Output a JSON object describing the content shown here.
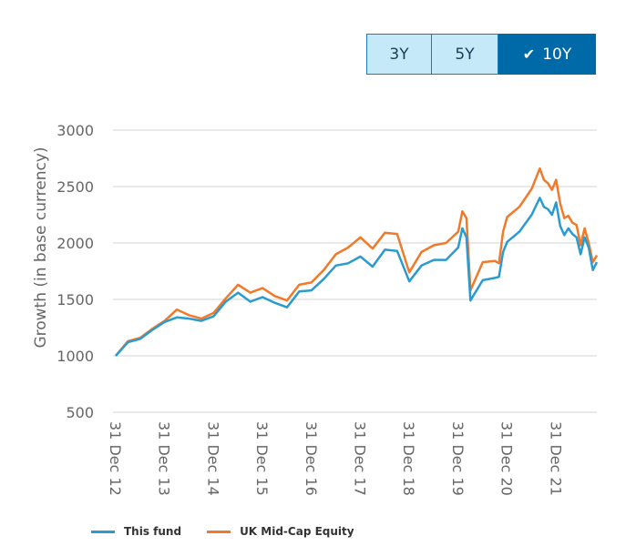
{
  "range_buttons": [
    {
      "label": "3Y",
      "active": false
    },
    {
      "label": "5Y",
      "active": false
    },
    {
      "label": "10Y",
      "active": true,
      "icon": "check-icon"
    }
  ],
  "chart_data": {
    "type": "line",
    "ylabel": "Growth (in base currency)",
    "xlabel": "",
    "ylim": [
      500,
      3000
    ],
    "yticks": [
      500,
      1000,
      1500,
      2000,
      2500,
      3000
    ],
    "xtick_labels": [
      "31 Dec 12",
      "31 Dec 13",
      "31 Dec 14",
      "31 Dec 15",
      "31 Dec 16",
      "31 Dec 17",
      "31 Dec 18",
      "31 Dec 19",
      "31 Dec 20",
      "31 Dec 21"
    ],
    "grid": "horizontal",
    "legend": "bottom",
    "x": [
      "2012-12",
      "2013-03",
      "2013-06",
      "2013-09",
      "2013-12",
      "2014-03",
      "2014-06",
      "2014-09",
      "2014-12",
      "2015-03",
      "2015-06",
      "2015-09",
      "2015-12",
      "2016-03",
      "2016-06",
      "2016-09",
      "2016-12",
      "2017-03",
      "2017-06",
      "2017-09",
      "2017-12",
      "2018-03",
      "2018-06",
      "2018-09",
      "2018-12",
      "2019-03",
      "2019-06",
      "2019-09",
      "2019-12",
      "2020-01",
      "2020-02",
      "2020-03",
      "2020-06",
      "2020-09",
      "2020-10",
      "2020-11",
      "2020-12",
      "2021-03",
      "2021-06",
      "2021-08",
      "2021-09",
      "2021-10",
      "2021-11",
      "2021-12",
      "2022-01",
      "2022-02",
      "2022-03",
      "2022-04",
      "2022-05",
      "2022-06",
      "2022-07",
      "2022-08",
      "2022-09",
      "2022-10"
    ],
    "series": [
      {
        "name": "This fund",
        "color": "#2a9bd0",
        "values": [
          1000,
          1120,
          1150,
          1230,
          1300,
          1340,
          1330,
          1310,
          1350,
          1480,
          1560,
          1480,
          1520,
          1470,
          1430,
          1570,
          1580,
          1680,
          1800,
          1820,
          1880,
          1790,
          1940,
          1930,
          1660,
          1800,
          1850,
          1850,
          1960,
          2130,
          2050,
          1490,
          1670,
          1690,
          1700,
          1920,
          2010,
          2100,
          2250,
          2400,
          2320,
          2300,
          2250,
          2360,
          2150,
          2070,
          2130,
          2080,
          2050,
          1900,
          2050,
          1960,
          1760,
          1830
        ]
      },
      {
        "name": "UK Mid-Cap Equity",
        "color": "#f07a2a",
        "values": [
          1000,
          1130,
          1160,
          1240,
          1310,
          1410,
          1360,
          1330,
          1380,
          1510,
          1630,
          1560,
          1600,
          1530,
          1490,
          1630,
          1650,
          1760,
          1900,
          1960,
          2050,
          1950,
          2090,
          2080,
          1740,
          1920,
          1980,
          2000,
          2100,
          2280,
          2220,
          1580,
          1830,
          1840,
          1820,
          2100,
          2230,
          2320,
          2480,
          2660,
          2560,
          2530,
          2470,
          2560,
          2350,
          2220,
          2240,
          2180,
          2160,
          1980,
          2130,
          2000,
          1830,
          1890
        ]
      }
    ]
  }
}
